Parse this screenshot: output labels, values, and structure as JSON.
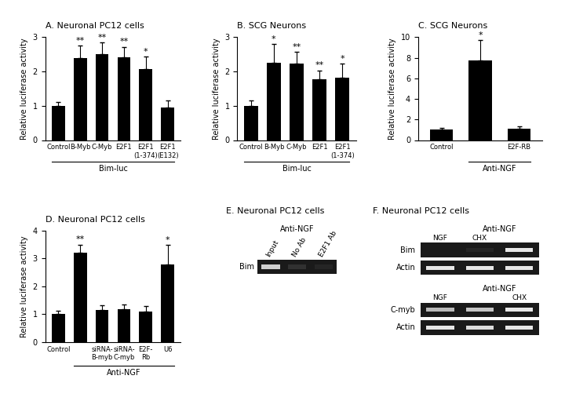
{
  "chart_data": [
    {
      "type": "bar",
      "title": "A. Neuronal PC12 cells",
      "y_label": "Relative luciferase activity",
      "categories": [
        "Control",
        "B-Myb",
        "C-Myb",
        "E2F1",
        "E2F1\n(1-374)",
        "E2F1\n(E132)"
      ],
      "values": [
        1.0,
        2.4,
        2.5,
        2.42,
        2.08,
        0.95
      ],
      "errors": [
        0.1,
        0.35,
        0.35,
        0.3,
        0.35,
        0.2
      ],
      "annotations": [
        null,
        "**",
        "**",
        "**",
        "*",
        null
      ],
      "group": {
        "label": "Bim-luc",
        "from": 0,
        "to": 5
      },
      "color": "#000000",
      "ylim": [
        0,
        3
      ],
      "yticks": [
        0,
        1,
        2,
        3
      ]
    },
    {
      "type": "bar",
      "title": "B. SCG Neurons",
      "y_label": "Relative luciferase activity",
      "categories": [
        "Control",
        "B-Myb",
        "C-Myb",
        "E2F1",
        "E2F1\n(1-374)"
      ],
      "values": [
        1.0,
        2.25,
        2.22,
        1.78,
        1.82
      ],
      "errors": [
        0.15,
        0.55,
        0.35,
        0.25,
        0.4
      ],
      "annotations": [
        null,
        "*",
        "**",
        "**",
        "*"
      ],
      "group": {
        "label": "Bim-luc",
        "from": 0,
        "to": 4
      },
      "color": "#000000",
      "ylim": [
        0,
        3
      ],
      "yticks": [
        0,
        1,
        2,
        3
      ]
    },
    {
      "type": "bar",
      "title": "C. SCG Neurons",
      "y_label": "Relative luciferase activity",
      "categories": [
        "Control",
        null,
        "E2F-RB"
      ],
      "values": [
        1.0,
        7.7,
        1.1
      ],
      "errors": [
        0.15,
        2.0,
        0.25
      ],
      "annotations": [
        null,
        "*",
        null
      ],
      "group": {
        "label": "Anti-NGF",
        "from": 1,
        "to": 2
      },
      "color": "#000000",
      "ylim": [
        0,
        10
      ],
      "yticks": [
        0,
        2,
        4,
        6,
        8,
        10
      ]
    },
    {
      "type": "bar",
      "title": "D. Neuronal PC12 cells",
      "y_label": "Relative luciferase activity",
      "categories": [
        "Control",
        null,
        "siRNA-\nB-myb",
        "siRNA-\nC-myb",
        "E2F-\nRb",
        "U6"
      ],
      "values": [
        1.0,
        3.2,
        1.15,
        1.18,
        1.08,
        2.78
      ],
      "errors": [
        0.12,
        0.3,
        0.18,
        0.18,
        0.2,
        0.7
      ],
      "annotations": [
        null,
        "**",
        null,
        null,
        null,
        "*"
      ],
      "group": {
        "label": "Anti-NGF",
        "from": 1,
        "to": 5
      },
      "color": "#000000",
      "ylim": [
        0,
        4
      ],
      "yticks": [
        0,
        1,
        2,
        3,
        4
      ]
    },
    {
      "type": "gel",
      "title": "E. Neuronal PC12 cells",
      "blots": [
        {
          "header": {
            "label": "Anti-NGF",
            "from": 0,
            "to": 2
          },
          "lanes": [
            "Input",
            "No Ab",
            "E2F1 Ab"
          ],
          "rows": [
            {
              "name": "Bim",
              "values": [
                0.8,
                0.1,
                0.05
              ]
            }
          ]
        }
      ]
    },
    {
      "type": "gel",
      "title": "F. Neuronal PC12 cells",
      "blots": [
        {
          "header": {
            "label": "Anti-NGF",
            "from": 1,
            "to": 2
          },
          "lanes": [
            "NGF",
            "CHX",
            null
          ],
          "rows": [
            {
              "name": "Bim",
              "values": [
                0.0,
                0.05,
                0.9
              ]
            },
            {
              "name": "Actin",
              "values": [
                0.9,
                0.9,
                0.9
              ]
            }
          ]
        },
        {
          "header": {
            "label": "Anti-NGF",
            "from": 1,
            "to": 2
          },
          "lanes": [
            "NGF",
            null,
            "CHX"
          ],
          "rows": [
            {
              "name": "C-myb",
              "values": [
                0.7,
                0.75,
                0.9
              ]
            },
            {
              "name": "Actin",
              "values": [
                0.9,
                0.85,
                0.9
              ]
            }
          ]
        }
      ]
    }
  ]
}
